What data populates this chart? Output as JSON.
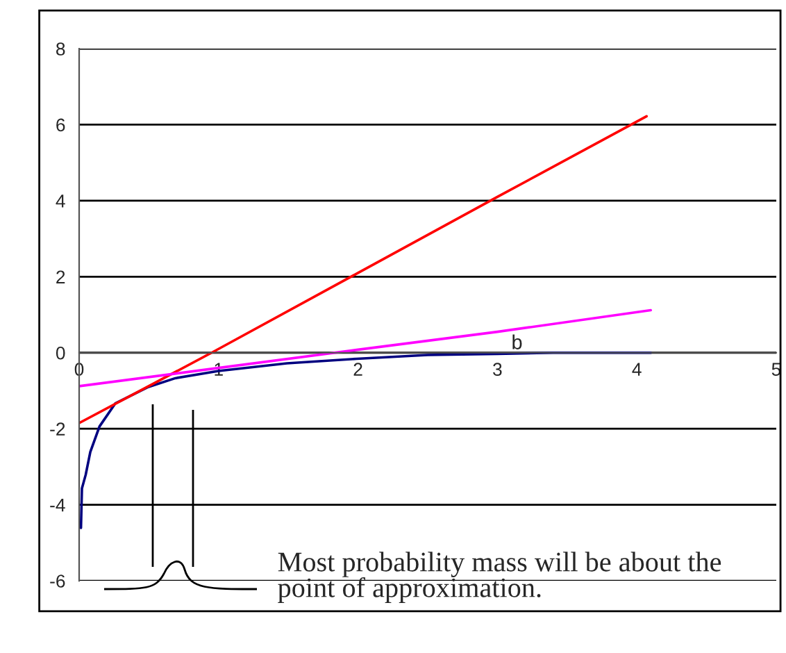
{
  "chart_data": {
    "type": "line",
    "xlim": [
      0,
      5
    ],
    "xticks": [
      0,
      1,
      2,
      3,
      4,
      5
    ],
    "ylim": [
      -6,
      8
    ],
    "yticks": [
      -6,
      -4,
      -2,
      0,
      2,
      4,
      6,
      8
    ],
    "grid": "y",
    "series": [
      {
        "color": "#000080",
        "x": [
          0.013,
          0.02,
          0.047,
          0.08,
          0.146,
          0.26,
          0.49,
          0.69,
          1.0,
          1.49,
          1.99,
          2.5,
          3.0,
          3.4,
          4.1
        ],
        "values": [
          -4.61,
          -3.57,
          -3.21,
          -2.61,
          -1.94,
          -1.33,
          -0.91,
          -0.67,
          -0.48,
          -0.28,
          -0.16,
          -0.06,
          -0.03,
          0.0,
          0.0
        ]
      },
      {
        "color": "#ff0000",
        "x": [
          0,
          0.95,
          2,
          3,
          4.07
        ],
        "values": [
          -1.85,
          0,
          2.1,
          4.1,
          6.22
        ]
      },
      {
        "color": "#ff00ff",
        "x": [
          0,
          1,
          2,
          3,
          4.1
        ],
        "values": [
          -0.88,
          -0.4,
          0.08,
          0.55,
          1.12
        ]
      }
    ],
    "annotations": [
      {
        "text": "b",
        "x": 3.1,
        "y": 0.48
      },
      "Most probability mass will be about the point of approximation."
    ]
  }
}
